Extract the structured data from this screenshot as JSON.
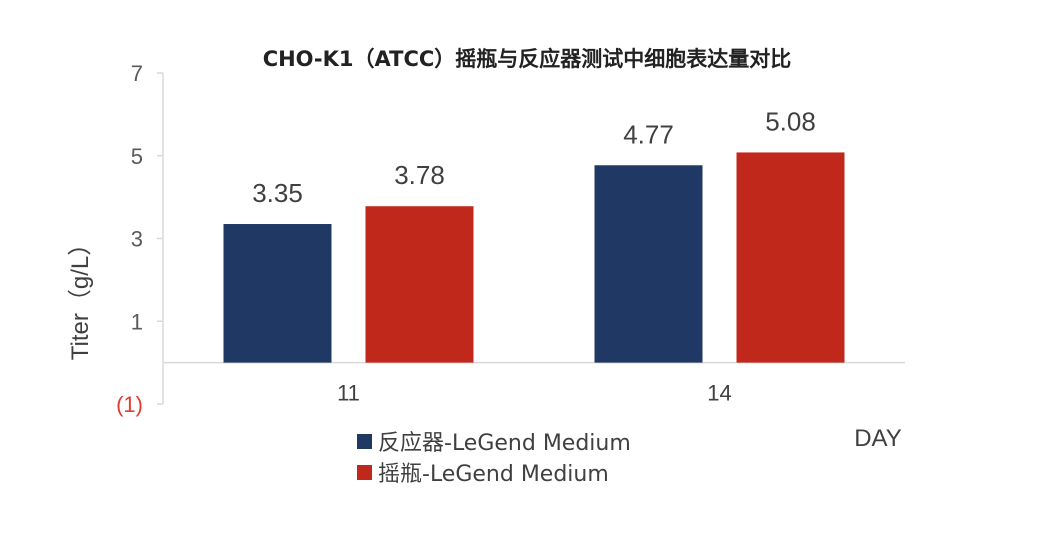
{
  "chart_data": {
    "type": "bar",
    "title": "CHO-K1（ATCC）摇瓶与反应器测试中细胞表达量对比",
    "xlabel": "DAY",
    "ylabel": "Titer（g/L）",
    "categories": [
      "11",
      "14"
    ],
    "series": [
      {
        "name": "反应器-LeGend Medium",
        "values": [
          3.35,
          4.77
        ],
        "labels": [
          "3.35",
          "4.77"
        ],
        "color": "#1f3864"
      },
      {
        "name": "摇瓶-LeGend Medium",
        "values": [
          3.78,
          5.08
        ],
        "labels": [
          "3.78",
          "5.08"
        ],
        "color": "#c0281b"
      }
    ],
    "ylim": [
      -1,
      7
    ],
    "y_ticks": [
      {
        "value": 7,
        "label": "7"
      },
      {
        "value": 5,
        "label": "5"
      },
      {
        "value": 3,
        "label": "3"
      },
      {
        "value": 1,
        "label": "1"
      },
      {
        "value": -1,
        "label": "(1)"
      }
    ],
    "grid": false,
    "legend_position": "bottom-center"
  }
}
